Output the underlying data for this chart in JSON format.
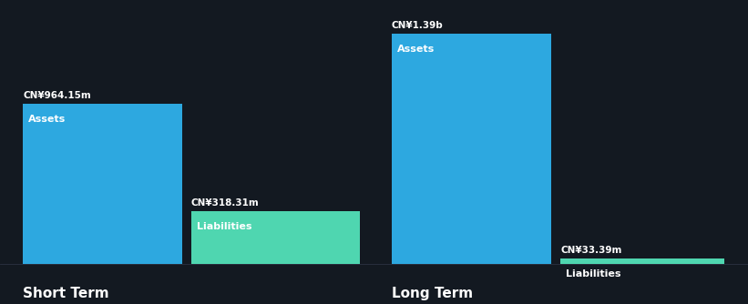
{
  "background_color": "#131921",
  "short_term": {
    "assets_value": 964.15,
    "assets_label": "CN¥964.15m",
    "assets_color": "#2da8e0",
    "liabilities_value": 318.31,
    "liabilities_label": "CN¥318.31m",
    "liabilities_color": "#4fd6b0",
    "assets_text": "Assets",
    "liabilities_text": "Liabilities",
    "section_label": "Short Term"
  },
  "long_term": {
    "assets_value": 1390,
    "assets_label": "CN¥1.39b",
    "assets_color": "#2da8e0",
    "liabilities_value": 33.39,
    "liabilities_label": "CN¥33.39m",
    "liabilities_color": "#4fd6b0",
    "assets_text": "Assets",
    "liabilities_text": "Liabilities",
    "section_label": "Long Term"
  },
  "text_color": "#ffffff",
  "font_family": "DejaVu Sans",
  "fig_width": 8.21,
  "fig_height": 3.34,
  "dpi": 100
}
